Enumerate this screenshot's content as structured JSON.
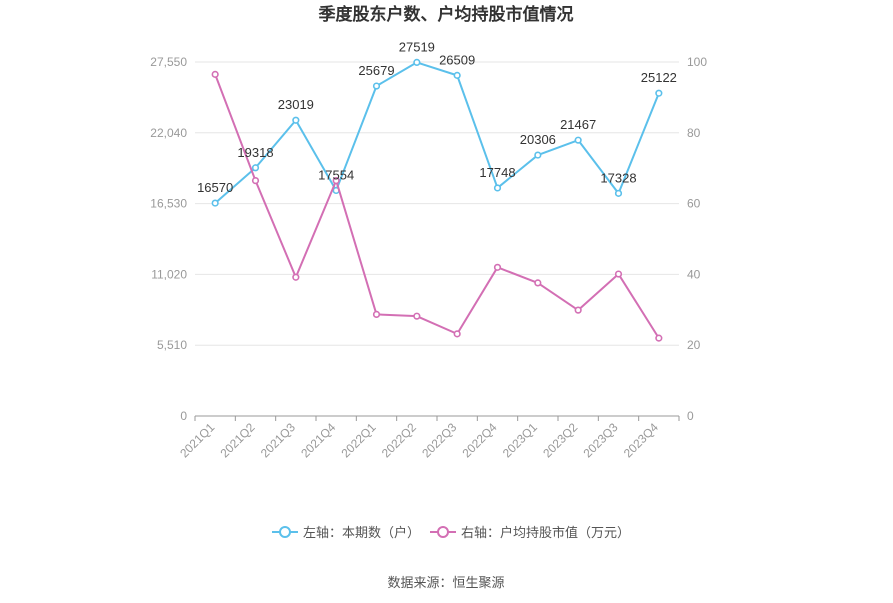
{
  "chart_data": {
    "type": "line",
    "title": "季度股东户数、户均持股市值情况",
    "categories": [
      "2021Q1",
      "2021Q2",
      "2021Q3",
      "2021Q4",
      "2022Q1",
      "2022Q2",
      "2022Q3",
      "2022Q4",
      "2023Q1",
      "2023Q2",
      "2023Q3",
      "2023Q4"
    ],
    "left_axis": {
      "ticks": [
        0,
        5510,
        11020,
        16530,
        22040,
        27550
      ],
      "tick_labels": [
        "0",
        "5,510",
        "11,020",
        "16,530",
        "22,040",
        "27,550"
      ],
      "ylim": [
        0,
        27550
      ]
    },
    "right_axis": {
      "ticks": [
        0,
        20,
        40,
        60,
        80,
        100
      ],
      "tick_labels": [
        "0",
        "20",
        "40",
        "60",
        "80",
        "100"
      ],
      "ylim": [
        0,
        100
      ]
    },
    "series": [
      {
        "name": "左轴：本期数（户）",
        "axis": "left",
        "color": "#5bc0eb",
        "values": [
          16570,
          19318,
          23019,
          17554,
          25679,
          27519,
          26509,
          17748,
          20306,
          21467,
          17328,
          25122
        ],
        "labels": [
          "16570",
          "19318",
          "23019",
          "17554",
          "25679",
          "27519",
          "26509",
          "17748",
          "20306",
          "21467",
          "17328",
          "25122"
        ]
      },
      {
        "name": "右轴：户均持股市值（万元）",
        "axis": "right",
        "color": "#d36fb4",
        "values": [
          96.5,
          66.5,
          39.2,
          66.5,
          28.7,
          28.2,
          23.2,
          42,
          37.6,
          29.9,
          40.1,
          22
        ]
      }
    ],
    "grid": true,
    "legend_position": "bottom"
  },
  "source": "数据来源：恒生聚源"
}
